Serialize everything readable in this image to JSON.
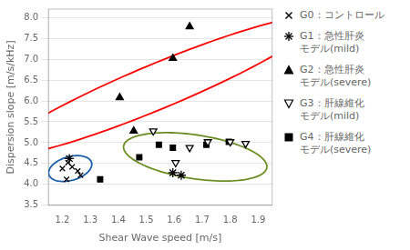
{
  "chart_data": {
    "type": "scatter",
    "xlabel": "Shear Wave speed [m/s]",
    "ylabel": "Dispersion slope [m/s/kHz]",
    "xlim": [
      1.15,
      1.95
    ],
    "ylim": [
      3.5,
      8.2
    ],
    "xticks": [
      1.2,
      1.3,
      1.4,
      1.5,
      1.6,
      1.7,
      1.8,
      1.9
    ],
    "yticks": [
      3.5,
      {
        "value": 4.0,
        "label": "4.0"
      },
      4.5,
      {
        "value": 5.0,
        "label": "5.0"
      },
      5.5,
      {
        "value": 6.0,
        "label": "6.0"
      },
      6.5,
      {
        "value": 7.0,
        "label": "7.0"
      },
      7.5,
      {
        "value": 8.0,
        "label": "8.0"
      }
    ],
    "grid": "y",
    "legend": "right",
    "series": [
      {
        "name": "G0：コントロール",
        "color": "#000000",
        "marker": "x",
        "x": [
          1.2,
          1.22,
          1.235,
          1.215,
          1.255,
          1.265
        ],
        "values": [
          4.38,
          4.52,
          4.42,
          4.12,
          4.32,
          4.22
        ]
      },
      {
        "name": "G1：急性肝炎\nモデル(mild)",
        "color": "#000000",
        "marker": "star",
        "x": [
          1.225,
          1.595,
          1.625
        ],
        "values": [
          4.62,
          4.28,
          4.22
        ]
      },
      {
        "name": "G2：急性肝炎\nモデル(severe)",
        "color": "#000000",
        "marker": "triangle_up",
        "x": [
          1.405,
          1.455,
          1.595,
          1.655
        ],
        "values": [
          6.08,
          5.28,
          7.02,
          7.78
        ]
      },
      {
        "name": "G3：肝線維化\nモデル(mild)",
        "color": "#000000",
        "marker": "open_triangle_down",
        "x": [
          1.525,
          1.605,
          1.655,
          1.72,
          1.8,
          1.855
        ],
        "values": [
          5.28,
          4.52,
          4.88,
          5.02,
          5.02,
          4.98
        ]
      },
      {
        "name": "G4：肝線維化\nモデル(severe)",
        "color": "#000000",
        "marker": "square",
        "x": [
          1.335,
          1.475,
          1.545,
          1.595,
          1.715,
          1.795
        ],
        "values": [
          4.12,
          4.65,
          4.95,
          4.88,
          4.95,
          5.02
        ]
      }
    ],
    "ellipses": [
      {
        "cx": 1.228,
        "cy": 4.38,
        "width": 0.145,
        "height": 0.62,
        "angle": -5,
        "color": "#1a5fa8"
      },
      {
        "cx": 1.54,
        "cy": 6.35,
        "width": 0.38,
        "height": 3.5,
        "angle": -18,
        "color": "red"
      },
      {
        "cx": 1.675,
        "cy": 4.66,
        "width": 0.46,
        "height": 1.18,
        "angle": 12,
        "color": "#6b8e23"
      }
    ]
  }
}
